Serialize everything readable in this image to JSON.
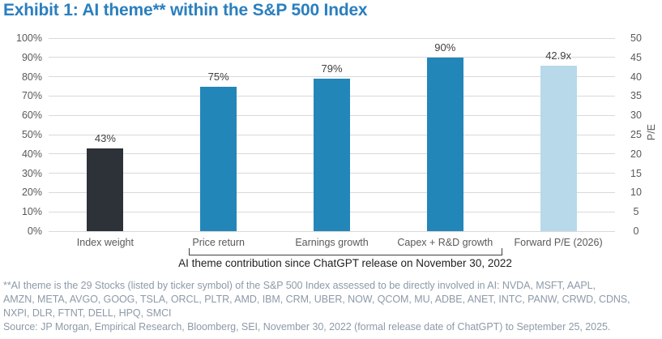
{
  "title": "Exhibit 1: AI theme** within the S&P 500 Index",
  "chart_data": {
    "type": "bar",
    "categories": [
      "Index weight",
      "Price return",
      "Earnings growth",
      "Capex + R&D growth",
      "Forward P/E (2026)"
    ],
    "series": [
      {
        "name": "AI theme within the S&P 500 Index",
        "values": [
          43,
          75,
          79,
          90,
          42.9
        ]
      }
    ],
    "value_axis": [
      "left",
      "left",
      "left",
      "left",
      "right"
    ],
    "value_labels": [
      "43%",
      "75%",
      "79%",
      "90%",
      "42.9x"
    ],
    "bar_colors": [
      "#2d3138",
      "#2386b8",
      "#2386b8",
      "#2386b8",
      "#b7d9ea"
    ],
    "left_axis": {
      "min": 0,
      "max": 100,
      "tick_labels": [
        "100%",
        "90%",
        "80%",
        "70%",
        "60%",
        "50%",
        "40%",
        "30%",
        "20%",
        "10%",
        "0%"
      ]
    },
    "right_axis": {
      "title": "P/E",
      "min": 0,
      "max": 50,
      "tick_labels": [
        "50",
        "45",
        "40",
        "35",
        "30",
        "25",
        "20",
        "15",
        "10",
        "5",
        "0"
      ]
    },
    "grid": true,
    "legend": "none",
    "bracket": {
      "caption": "AI theme contribution since ChatGPT release on November 30, 2022",
      "from_category": 1,
      "to_category": 3
    }
  },
  "footnote_lines": [
    "**AI theme is the 29 Stocks (listed by ticker symbol) of the S&P 500 Index assessed to be directly involved in AI: NVDA, MSFT, AAPL,",
    "AMZN, META, AVGO, GOOG, TSLA, ORCL, PLTR, AMD, IBM, CRM, UBER, NOW, QCOM, MU, ADBE, ANET, INTC, PANW, CRWD, CDNS,",
    "NXPI, DLR, FTNT, DELL, HPQ, SMCI"
  ],
  "source": "Source: JP Morgan, Empirical Research, Bloomberg, SEI, November 30, 2022 (formal release date of ChatGPT) to September 25, 2025."
}
